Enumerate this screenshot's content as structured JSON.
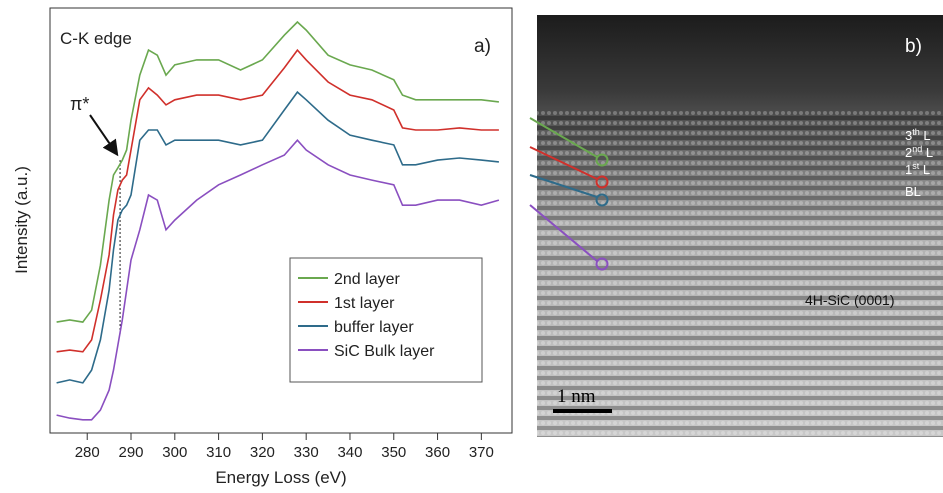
{
  "chart_data": {
    "type": "line",
    "title": "C-K edge",
    "panel_label": "a)",
    "x_label": "Energy Loss (eV)",
    "y_label": "Intensity (a.u.)",
    "annotation": {
      "text": "π*",
      "x": 287.5
    },
    "x": [
      273,
      276,
      279,
      281,
      283,
      285,
      286,
      287,
      288,
      289,
      290,
      292,
      294,
      296,
      298,
      300,
      305,
      310,
      315,
      320,
      325,
      328,
      330,
      335,
      340,
      345,
      350,
      352,
      355,
      360,
      365,
      370,
      374
    ],
    "series": [
      {
        "name": "2nd layer",
        "color": "#6aa84f",
        "values": [
          26.1,
          26.6,
          26.1,
          28.9,
          39.5,
          54.8,
          60.7,
          62.4,
          64.2,
          66.6,
          73.6,
          84.2,
          90.1,
          88.9,
          84.2,
          86.6,
          87.8,
          87.8,
          85.4,
          87.8,
          93.6,
          96.7,
          94.8,
          88.9,
          86.6,
          85.4,
          83.1,
          79.5,
          78.4,
          78.4,
          78.4,
          78.4,
          77.9
        ]
      },
      {
        "name": "1st layer",
        "color": "#d0302b",
        "values": [
          19.1,
          19.5,
          19.1,
          21.9,
          31.3,
          41.9,
          51.3,
          57.2,
          59.5,
          60.7,
          66.6,
          78.4,
          81.2,
          79.5,
          77.2,
          78.4,
          79.5,
          79.5,
          78.4,
          79.5,
          85.9,
          90.1,
          87.8,
          82.6,
          79.5,
          78.4,
          76.0,
          71.8,
          71.3,
          71.3,
          71.8,
          71.3,
          71.3
        ]
      },
      {
        "name": "buffer layer",
        "color": "#2e6b8a",
        "values": [
          11.8,
          12.5,
          11.8,
          14.8,
          21.9,
          33.6,
          43.1,
          50.1,
          52.5,
          53.6,
          56.0,
          68.9,
          71.3,
          71.3,
          67.8,
          68.9,
          68.9,
          68.9,
          67.8,
          68.9,
          76.0,
          80.2,
          78.4,
          73.6,
          70.1,
          68.9,
          67.8,
          63.1,
          63.1,
          64.2,
          64.7,
          64.2,
          63.8
        ]
      },
      {
        "name": "SiC Bulk layer",
        "color": "#8a4fc0",
        "values": [
          4.2,
          3.5,
          3.1,
          3.1,
          5.4,
          10.1,
          14.8,
          20.7,
          26.6,
          33.6,
          40.7,
          47.8,
          56.0,
          54.8,
          47.8,
          50.1,
          54.8,
          58.4,
          60.7,
          63.1,
          65.4,
          68.9,
          66.6,
          63.1,
          60.7,
          59.5,
          58.4,
          53.6,
          53.6,
          54.8,
          54.8,
          53.6,
          54.8
        ]
      }
    ],
    "xlim": [
      271.5,
      377
    ],
    "ylim": [
      0,
      100
    ],
    "xticks": [
      280,
      290,
      300,
      310,
      320,
      330,
      340,
      350,
      360,
      370
    ],
    "legend": "lower-right"
  },
  "panel_b": {
    "panel_label": "b)",
    "layers": [
      {
        "num": "3",
        "sup": "th",
        "rest": " L"
      },
      {
        "num": "2",
        "sup": "nd",
        "rest": " L"
      },
      {
        "num": "1",
        "sup": "st",
        "rest": " L"
      },
      {
        "num": "",
        "sup": "",
        "rest": "BL"
      }
    ],
    "substrate": "4H-SiC (0001)",
    "scale_bar": "1 nm"
  }
}
